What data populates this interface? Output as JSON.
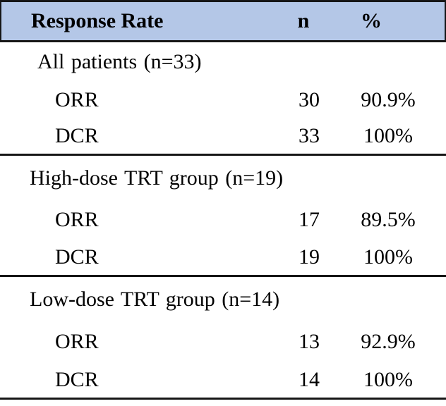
{
  "colors": {
    "header_bg": "#b4c7e7",
    "line": "#161616"
  },
  "table": {
    "header": {
      "label": "Response Rate",
      "n": "n",
      "pct": "%"
    },
    "sections": [
      {
        "label": "All patients (n=33)",
        "rows": [
          {
            "name": "ORR",
            "n": "30",
            "pct": "90.9%"
          },
          {
            "name": "DCR",
            "n": "33",
            "pct": "100%"
          }
        ]
      },
      {
        "label": "High-dose TRT group (n=19)",
        "rows": [
          {
            "name": "ORR",
            "n": "17",
            "pct": "89.5%"
          },
          {
            "name": "DCR",
            "n": "19",
            "pct": "100%"
          }
        ]
      },
      {
        "label": "Low-dose TRT group (n=14)",
        "rows": [
          {
            "name": "ORR",
            "n": "13",
            "pct": "92.9%"
          },
          {
            "name": "DCR",
            "n": "14",
            "pct": "100%"
          }
        ]
      }
    ]
  },
  "chart_data": {
    "type": "table",
    "title": "Response Rate",
    "columns": [
      "Response Rate",
      "n",
      "%"
    ],
    "rows": [
      [
        "All patients (n=33)",
        null,
        null
      ],
      [
        "ORR",
        30,
        "90.9%"
      ],
      [
        "DCR",
        33,
        "100%"
      ],
      [
        "High-dose TRT group (n=19)",
        null,
        null
      ],
      [
        "ORR",
        17,
        "89.5%"
      ],
      [
        "DCR",
        19,
        "100%"
      ],
      [
        "Low-dose TRT group (n=14)",
        null,
        null
      ],
      [
        "ORR",
        13,
        "92.9%"
      ],
      [
        "DCR",
        14,
        "100%"
      ]
    ]
  }
}
